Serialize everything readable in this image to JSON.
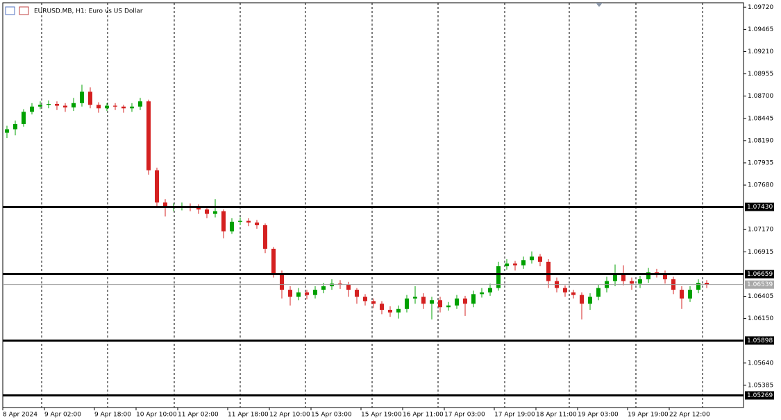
{
  "chart_data": {
    "type": "candlestick",
    "title": "EURUSD.MB, H1:  Euro vs US Dollar",
    "up_color": "#00a000",
    "down_color": "#d42020",
    "ylim": [
      1.0513,
      1.0977
    ],
    "yticks": [
      {
        "value": 1.0972,
        "label": "1.09720"
      },
      {
        "value": 1.09465,
        "label": "1.09465"
      },
      {
        "value": 1.0921,
        "label": "1.09210"
      },
      {
        "value": 1.08955,
        "label": "1.08955"
      },
      {
        "value": 1.087,
        "label": "1.08700"
      },
      {
        "value": 1.08445,
        "label": "1.08445"
      },
      {
        "value": 1.0819,
        "label": "1.08190"
      },
      {
        "value": 1.07935,
        "label": "1.07935"
      },
      {
        "value": 1.0768,
        "label": "1.07680"
      },
      {
        "value": 1.0717,
        "label": "1.07170"
      },
      {
        "value": 1.06915,
        "label": "1.06915"
      },
      {
        "value": 1.06405,
        "label": "1.06405"
      },
      {
        "value": 1.0615,
        "label": "1.06150"
      },
      {
        "value": 1.0564,
        "label": "1.05640"
      },
      {
        "value": 1.05385,
        "label": "1.05385"
      }
    ],
    "levels": [
      {
        "value": 1.0743,
        "label": "1.07430"
      },
      {
        "value": 1.06659,
        "label": "1.06659"
      },
      {
        "value": 1.05898,
        "label": "1.05898"
      },
      {
        "value": 1.05269,
        "label": "1.05269"
      }
    ],
    "last_price": {
      "value": 1.06539,
      "label": "1.06539"
    },
    "categories": [
      "8 Apr 2024",
      null,
      null,
      null,
      null,
      "9 Apr 02:00",
      null,
      null,
      null,
      null,
      null,
      "9 Apr 18:00",
      null,
      null,
      null,
      null,
      "10 Apr 10:00",
      null,
      null,
      null,
      null,
      "11 Apr 02:00",
      null,
      null,
      null,
      null,
      null,
      "11 Apr 18:00",
      null,
      null,
      null,
      null,
      "12 Apr 10:00",
      null,
      null,
      null,
      null,
      "15 Apr 03:00",
      null,
      null,
      null,
      null,
      null,
      "15 Apr 19:00",
      null,
      null,
      null,
      null,
      "16 Apr 11:00",
      null,
      null,
      null,
      null,
      "17 Apr 03:00",
      null,
      null,
      null,
      null,
      null,
      "17 Apr 19:00",
      null,
      null,
      null,
      null,
      "18 Apr 11:00",
      null,
      null,
      null,
      null,
      "19 Apr 03:00",
      null,
      null,
      null,
      null,
      null,
      "19 Apr 19:00",
      null,
      null,
      null,
      null,
      "22 Apr 12:00",
      null,
      null,
      null,
      null
    ],
    "open": [
      1.0828,
      1.0832,
      1.0838,
      1.0852,
      1.0858,
      1.086,
      1.0861,
      1.0859,
      1.0857,
      1.0862,
      1.0875,
      1.086,
      1.0856,
      1.0859,
      1.0858,
      1.0856,
      1.0858,
      1.0864,
      1.0785,
      1.0748,
      1.0742,
      1.0743,
      1.0744,
      1.0742,
      1.074,
      1.0735,
      1.0738,
      1.0715,
      1.0726,
      1.0727,
      1.0725,
      1.0722,
      1.0695,
      1.0667,
      1.0648,
      1.064,
      1.0645,
      1.0642,
      1.0648,
      1.0652,
      1.0655,
      1.0654,
      1.0648,
      1.064,
      1.0635,
      1.0632,
      1.0625,
      1.0622,
      1.0626,
      1.0638,
      1.064,
      1.0632,
      1.0636,
      1.0628,
      1.063,
      1.0638,
      1.0632,
      1.0643,
      1.0645,
      1.065,
      1.0675,
      1.0678,
      1.0676,
      1.0682,
      1.0686,
      1.068,
      1.0658,
      1.065,
      1.0645,
      1.0642,
      1.0632,
      1.064,
      1.065,
      1.0658,
      1.0665,
      1.0658,
      1.0655,
      1.066,
      1.0668,
      1.0667,
      1.066,
      1.0648,
      1.0638,
      1.0648,
      1.0656
    ],
    "high": [
      1.0836,
      1.0842,
      1.0855,
      1.0862,
      1.0864,
      1.0865,
      1.0864,
      1.0862,
      1.0868,
      1.0883,
      1.088,
      1.0863,
      1.0862,
      1.0862,
      1.086,
      1.0862,
      1.0868,
      1.0866,
      1.0788,
      1.0752,
      1.0747,
      1.0748,
      1.0747,
      1.0746,
      1.0743,
      1.0752,
      1.074,
      1.073,
      1.0731,
      1.073,
      1.0728,
      1.0724,
      1.0697,
      1.067,
      1.0652,
      1.065,
      1.0648,
      1.0652,
      1.0656,
      1.066,
      1.0659,
      1.0657,
      1.065,
      1.0643,
      1.0638,
      1.0635,
      1.0629,
      1.063,
      1.0642,
      1.0652,
      1.0644,
      1.064,
      1.064,
      1.0634,
      1.0642,
      1.0641,
      1.0647,
      1.065,
      1.0655,
      1.068,
      1.0683,
      1.0681,
      1.0686,
      1.0692,
      1.0689,
      1.0683,
      1.0662,
      1.0653,
      1.0648,
      1.0645,
      1.0644,
      1.0654,
      1.0663,
      1.0677,
      1.0676,
      1.0662,
      1.0664,
      1.0673,
      1.0672,
      1.067,
      1.0663,
      1.0652,
      1.0652,
      1.066,
      1.0659
    ],
    "low": [
      1.0822,
      1.0825,
      1.0835,
      1.0849,
      1.0855,
      1.0856,
      1.0854,
      1.0852,
      1.0853,
      1.0858,
      1.0856,
      1.0851,
      1.0853,
      1.0854,
      1.0851,
      1.0852,
      1.0854,
      1.078,
      1.0744,
      1.0732,
      1.0738,
      1.0739,
      1.0738,
      1.0735,
      1.073,
      1.0731,
      1.0707,
      1.0712,
      1.0722,
      1.0721,
      1.0718,
      1.069,
      1.0662,
      1.0638,
      1.063,
      1.0636,
      1.0637,
      1.0638,
      1.0644,
      1.0648,
      1.0649,
      1.064,
      1.0632,
      1.063,
      1.0627,
      1.062,
      1.0617,
      1.0615,
      1.0622,
      1.0632,
      1.0626,
      1.0614,
      1.0622,
      1.0624,
      1.0626,
      1.0618,
      1.0628,
      1.0639,
      1.0641,
      1.0647,
      1.0671,
      1.067,
      1.0672,
      1.0678,
      1.0675,
      1.065,
      1.0645,
      1.064,
      1.0638,
      1.0614,
      1.0625,
      1.0636,
      1.0645,
      1.0652,
      1.0653,
      1.0648,
      1.065,
      1.0656,
      1.0662,
      1.0655,
      1.0643,
      1.0626,
      1.0634,
      1.0644,
      1.065
    ],
    "close": [
      1.0832,
      1.0838,
      1.0852,
      1.0858,
      1.086,
      1.0861,
      1.0859,
      1.0857,
      1.0862,
      1.0875,
      1.086,
      1.0856,
      1.0859,
      1.0858,
      1.0856,
      1.0858,
      1.0864,
      1.0785,
      1.0748,
      1.0742,
      1.0743,
      1.0744,
      1.0742,
      1.074,
      1.0735,
      1.0738,
      1.0715,
      1.0726,
      1.0727,
      1.0725,
      1.0722,
      1.0695,
      1.0667,
      1.0648,
      1.064,
      1.0645,
      1.0642,
      1.0648,
      1.0652,
      1.0655,
      1.0654,
      1.0648,
      1.064,
      1.0635,
      1.0632,
      1.0625,
      1.0622,
      1.0626,
      1.0638,
      1.064,
      1.0632,
      1.0636,
      1.0628,
      1.063,
      1.0638,
      1.0632,
      1.0643,
      1.0645,
      1.065,
      1.0675,
      1.0678,
      1.0676,
      1.0682,
      1.0686,
      1.068,
      1.0658,
      1.065,
      1.0645,
      1.0642,
      1.0632,
      1.064,
      1.065,
      1.0658,
      1.0665,
      1.0658,
      1.0655,
      1.066,
      1.0668,
      1.0667,
      1.066,
      1.0648,
      1.0638,
      1.0648,
      1.0656,
      1.0654
    ]
  }
}
